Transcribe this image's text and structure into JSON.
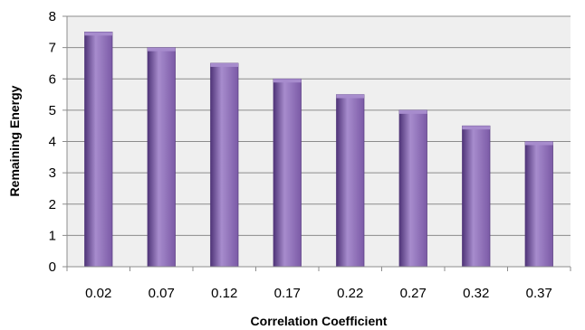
{
  "chart_data": {
    "type": "bar",
    "title": "",
    "xlabel": "Correlation Coefficient",
    "ylabel": "Remaining Energy",
    "categories": [
      "0.02",
      "0.07",
      "0.12",
      "0.17",
      "0.22",
      "0.27",
      "0.32",
      "0.37"
    ],
    "values": [
      7.5,
      7.0,
      6.5,
      6.0,
      5.5,
      5.0,
      4.5,
      4.0
    ],
    "ylim": [
      0,
      8
    ],
    "yticks": [
      "0",
      "1",
      "2",
      "3",
      "4",
      "5",
      "6",
      "7",
      "8"
    ],
    "grid": true,
    "legend": "none"
  },
  "colors": {
    "bar": "#7b5aa6",
    "bar_light": "#a78ccd",
    "bar_dark": "#4f3478",
    "plot_background": "#efefef",
    "gridline": "#8c8c8c",
    "axis": "#8c8c8c"
  }
}
